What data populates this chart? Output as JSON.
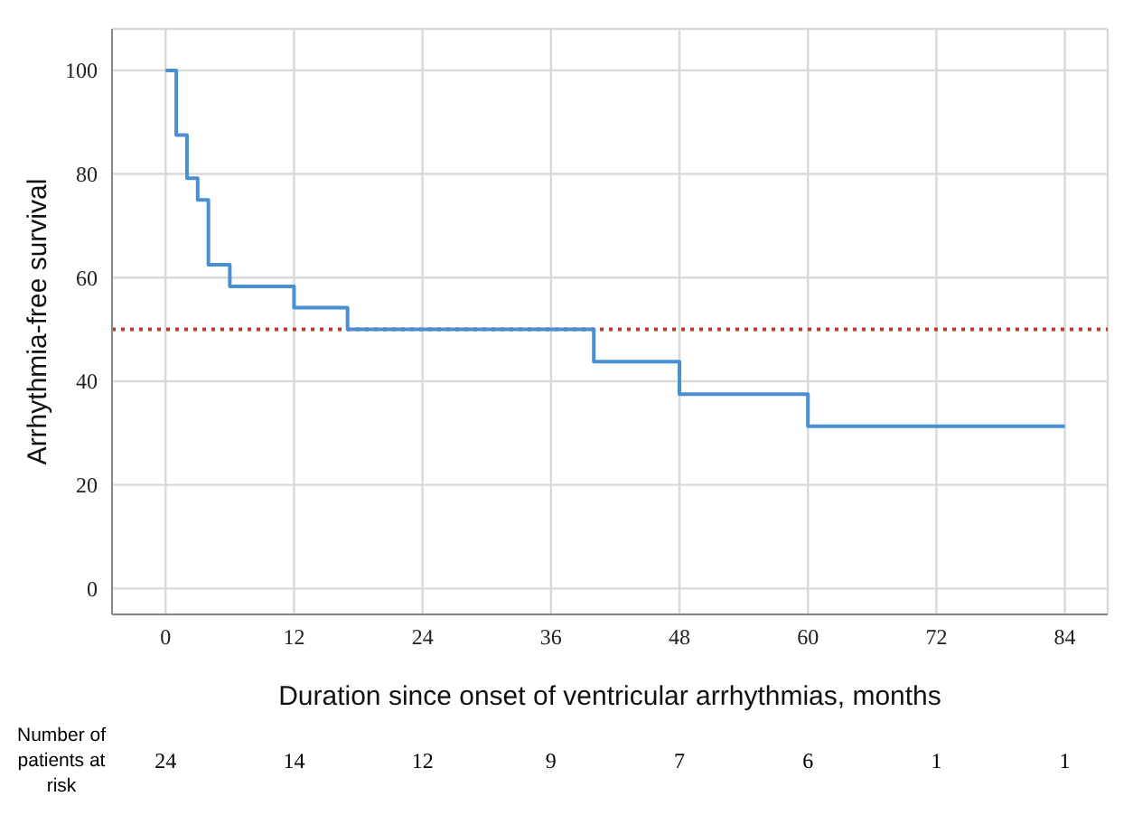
{
  "chart_data": {
    "type": "step",
    "xlabel": "Duration since onset of ventricular arrhythmias, months",
    "ylabel": "Arrhythmia-free survival",
    "x": [
      0,
      1,
      2,
      3,
      4,
      6,
      12,
      17,
      40,
      48,
      60,
      84
    ],
    "series": [
      {
        "color": "#4a8fd4",
        "values": [
          100,
          87.5,
          79.2,
          75,
          62.5,
          58.3,
          54.2,
          50,
          43.8,
          37.5,
          31.3,
          31.3
        ]
      }
    ],
    "xlim": [
      -5,
      88
    ],
    "xticks": [
      0,
      12,
      24,
      36,
      48,
      60,
      72,
      84
    ],
    "ylim": [
      -5,
      108
    ],
    "yticks": [
      0,
      20,
      40,
      60,
      80,
      100
    ],
    "grid": true,
    "marker": "none",
    "line_style": "solid",
    "ref_lines": [
      {
        "axis": "y",
        "value": 50,
        "color": "#c0392b",
        "line_style": "dotted"
      }
    ],
    "annotations": [
      "Number of patients at risk",
      "24",
      "14",
      "12",
      "9",
      "7",
      "6",
      "1",
      "1"
    ]
  }
}
